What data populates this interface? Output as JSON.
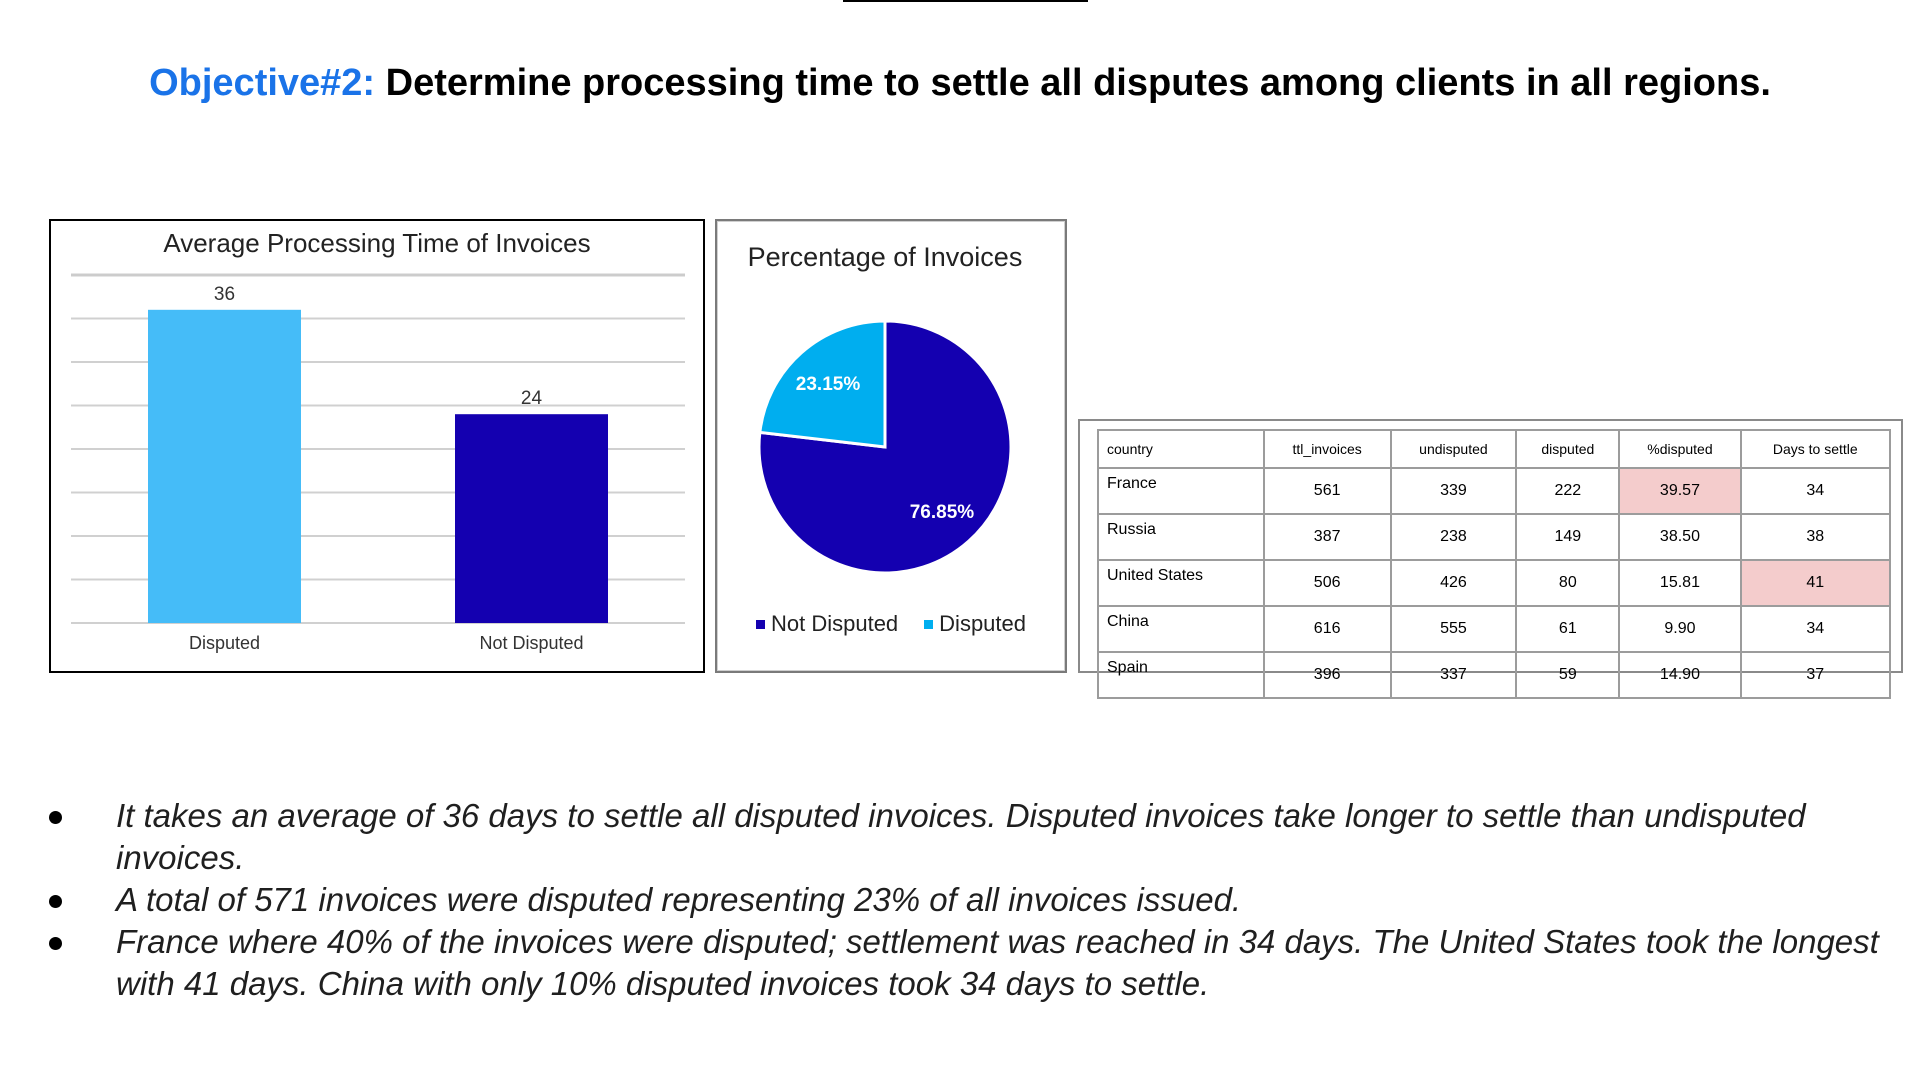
{
  "slide": {
    "title_prefix": "Objective#2:",
    "title_main": " Determine processing time to settle all disputes among clients in all regions."
  },
  "chart_data": [
    {
      "type": "bar",
      "title": "Average Processing Time of Invoices",
      "categories": [
        "Disputed",
        "Not Disputed"
      ],
      "values": [
        36,
        24
      ],
      "data_labels": [
        "36",
        "24"
      ],
      "colors": [
        "#45bcf8",
        "#1400b0"
      ],
      "ylim": [
        0,
        40
      ],
      "grid": true,
      "xlabel": "",
      "ylabel": ""
    },
    {
      "type": "pie",
      "title": "Percentage of Invoices",
      "categories": [
        "Not Disputed",
        "Disputed"
      ],
      "values": [
        76.85,
        23.15
      ],
      "data_labels": [
        "76.85%",
        "23.15%"
      ],
      "colors": [
        "#1400b0",
        "#00aeef"
      ],
      "legend": "bottom"
    },
    {
      "type": "table",
      "columns": [
        "country",
        "ttl_invoices",
        "undisputed",
        "disputed",
        "%disputed",
        "Days to settle"
      ],
      "rows": [
        [
          "France",
          "561",
          "339",
          "222",
          "39.57",
          "34"
        ],
        [
          "Russia",
          "387",
          "238",
          "149",
          "38.50",
          "38"
        ],
        [
          "United States",
          "506",
          "426",
          "80",
          "15.81",
          "41"
        ],
        [
          "China",
          "616",
          "555",
          "61",
          "9.90",
          "34"
        ],
        [
          "Spain",
          "396",
          "337",
          "59",
          "14.90",
          "37"
        ]
      ],
      "highlighted_cells": [
        [
          0,
          4
        ],
        [
          2,
          5
        ]
      ],
      "highlight_color": "#f4cccc"
    }
  ],
  "bullets": [
    "It takes an average of 36 days to settle all disputed invoices. Disputed invoices take longer to settle than undisputed invoices.",
    "A total of 571 invoices were disputed representing 23% of all invoices issued.",
    "France where 40% of the invoices were disputed; settlement was reached in 34 days. The United States took the longest with 41 days. China with only 10% disputed invoices took 34 days to settle."
  ]
}
